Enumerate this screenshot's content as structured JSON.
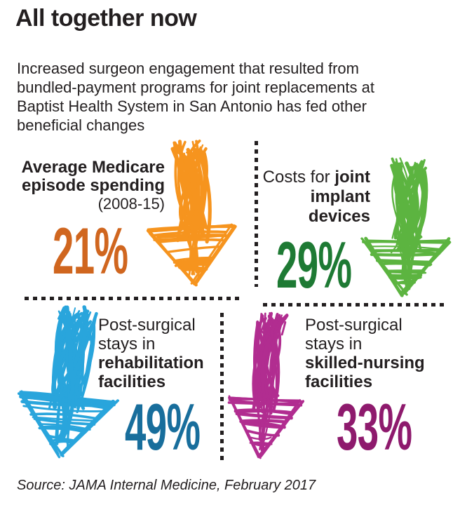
{
  "page": {
    "background": "#ffffff",
    "text_color": "#231f20",
    "divider_color": "#231f20"
  },
  "header": {
    "title": "All together now",
    "intro_lines": [
      "Increased surgeon engagement that resulted from",
      "bundled-payment programs for joint replacements at",
      "Baptist Health System in San Antonio has fed other",
      "beneficial changes"
    ]
  },
  "stats": [
    {
      "id": "medicare-episode-spending",
      "value": "21%",
      "value_color": "#d0661f",
      "arrow_color": "#f6941e",
      "arrow_direction": "down",
      "lines": [
        {
          "runs": [
            {
              "t": "Average Medicare",
              "b": true
            }
          ]
        },
        {
          "runs": [
            {
              "t": "episode spending",
              "b": true
            }
          ]
        },
        {
          "runs": [
            {
              "t": "(2008-15)",
              "b": false,
              "n": true
            }
          ]
        }
      ]
    },
    {
      "id": "joint-implant-device-costs",
      "value": "29%",
      "value_color": "#1e7a34",
      "arrow_color": "#5cb440",
      "arrow_direction": "down",
      "lines": [
        {
          "runs": [
            {
              "t": "Costs for ",
              "b": false
            },
            {
              "t": "joint",
              "b": true
            }
          ]
        },
        {
          "runs": [
            {
              "t": "implant",
              "b": true
            }
          ]
        },
        {
          "runs": [
            {
              "t": "devices",
              "b": true
            }
          ]
        }
      ]
    },
    {
      "id": "rehabilitation-facility-stays",
      "value": "49%",
      "value_color": "#186e9c",
      "arrow_color": "#29a5dc",
      "arrow_direction": "down",
      "lines": [
        {
          "runs": [
            {
              "t": "Post-surgical",
              "b": false
            }
          ]
        },
        {
          "runs": [
            {
              "t": "stays in",
              "b": false
            }
          ]
        },
        {
          "runs": [
            {
              "t": "rehabilitation",
              "b": true
            }
          ]
        },
        {
          "runs": [
            {
              "t": "facilities",
              "b": true
            }
          ]
        }
      ]
    },
    {
      "id": "skilled-nursing-facility-stays",
      "value": "33%",
      "value_color": "#8e1a6d",
      "arrow_color": "#b12d90",
      "arrow_direction": "down",
      "lines": [
        {
          "runs": [
            {
              "t": "Post-surgical",
              "b": false
            }
          ]
        },
        {
          "runs": [
            {
              "t": "stays in",
              "b": false
            }
          ]
        },
        {
          "runs": [
            {
              "t": "skilled-nursing",
              "b": true
            }
          ]
        },
        {
          "runs": [
            {
              "t": "facilities",
              "b": true
            }
          ]
        }
      ]
    }
  ],
  "footer": {
    "source": "Source: JAMA Internal Medicine, February 2017"
  },
  "chart_data": {
    "type": "pictograph",
    "title": "All together now",
    "subtitle": "Increased surgeon engagement that resulted from bundled-payment programs for joint replacements at Baptist Health System in San Antonio has fed other beneficial changes",
    "categories": [
      "Average Medicare episode spending (2008-15)",
      "Costs for joint implant devices",
      "Post-surgical stays in rehabilitation facilities",
      "Post-surgical stays in skilled-nursing facilities"
    ],
    "values": [
      -21,
      -29,
      -49,
      -33
    ],
    "unit": "percent change (all decreases, shown as down arrows)",
    "colors": [
      "#f6941e",
      "#5cb440",
      "#29a5dc",
      "#b12d90"
    ],
    "source": "Source: JAMA Internal Medicine, February 2017"
  }
}
